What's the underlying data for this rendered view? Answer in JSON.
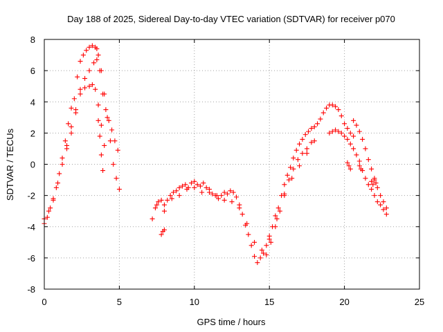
{
  "chart_data": {
    "type": "scatter",
    "title": "Day 188 of 2025, Sidereal Day-to-day VTEC variation (SDTVAR) for receiver p070",
    "xlabel": "GPS time / hours",
    "ylabel": "SDTVAR / TECUs",
    "xlim": [
      0,
      25
    ],
    "ylim": [
      -8,
      8
    ],
    "xticks": [
      0,
      5,
      10,
      15,
      20,
      25
    ],
    "yticks": [
      -8,
      -6,
      -4,
      -2,
      0,
      2,
      4,
      6,
      8
    ],
    "grid": true,
    "marker": "+",
    "color": "#ff0000",
    "series": [
      {
        "name": "track-a",
        "x": [
          0.0,
          0.2,
          0.4,
          0.6,
          0.8,
          1.0,
          1.2,
          1.4,
          1.6,
          1.8,
          2.0,
          2.2,
          2.4,
          2.6,
          2.8,
          3.0,
          3.2,
          3.4,
          3.5,
          3.6,
          3.8,
          4.0,
          4.2,
          4.4,
          4.6,
          4.8,
          5.0
        ],
        "y": [
          -3.8,
          -3.4,
          -2.8,
          -2.2,
          -1.5,
          -0.6,
          0.4,
          1.5,
          2.6,
          3.6,
          4.2,
          5.6,
          6.6,
          7.0,
          7.3,
          7.5,
          7.6,
          7.5,
          7.4,
          7.0,
          6.0,
          4.5,
          3.0,
          1.5,
          0.0,
          -0.9,
          -1.6
        ]
      },
      {
        "name": "track-b",
        "x": [
          0.0,
          0.3,
          0.6,
          0.9,
          1.2,
          1.5,
          1.8,
          2.1,
          2.4,
          2.7,
          3.0,
          3.3,
          3.5,
          3.7,
          3.9,
          4.1,
          4.3,
          4.5,
          4.7,
          4.9
        ],
        "y": [
          -3.5,
          -3.0,
          -2.3,
          -1.2,
          0.0,
          1.2,
          2.4,
          3.5,
          4.8,
          5.5,
          6.0,
          6.5,
          6.7,
          6.0,
          4.5,
          3.5,
          2.8,
          2.2,
          1.5,
          0.9
        ]
      },
      {
        "name": "track-c",
        "x": [
          1.5,
          1.8,
          2.1,
          2.4,
          2.7,
          3.0,
          3.2,
          3.4,
          3.6,
          3.8,
          4.0
        ],
        "y": [
          1.0,
          2.0,
          3.3,
          4.5,
          4.9,
          5.0,
          5.1,
          4.8,
          3.8,
          2.5,
          1.2
        ]
      },
      {
        "name": "track-d",
        "x": [
          3.6,
          3.7,
          3.8,
          3.9
        ],
        "y": [
          2.8,
          1.8,
          0.6,
          -0.4
        ]
      },
      {
        "name": "track-e",
        "x": [
          7.2,
          7.4,
          7.6,
          7.8,
          8.0,
          8.2,
          8.4,
          8.6,
          8.8,
          9.0,
          9.2,
          9.4,
          9.6,
          9.8,
          10.0,
          10.2,
          10.4,
          10.6,
          10.8,
          11.0,
          11.2,
          11.4,
          11.6,
          11.8,
          12.0,
          12.2,
          12.4,
          12.6,
          12.8,
          13.0,
          13.2,
          13.4,
          13.6,
          13.8,
          14.0,
          14.2,
          14.4,
          14.6,
          14.8,
          15.0,
          15.2,
          15.4,
          15.6,
          15.8,
          16.0,
          16.2,
          16.4,
          16.6,
          16.8,
          17.0,
          17.2,
          17.4,
          17.6,
          17.8,
          18.0,
          18.2,
          18.4,
          18.6,
          18.8,
          19.0,
          19.2,
          19.4,
          19.6,
          19.8,
          20.0,
          20.2,
          20.4,
          20.6
        ],
        "y": [
          -3.5,
          -2.8,
          -2.4,
          -2.3,
          -2.6,
          -2.3,
          -2.0,
          -1.8,
          -1.7,
          -1.5,
          -1.4,
          -1.3,
          -1.5,
          -1.2,
          -1.1,
          -1.3,
          -1.4,
          -1.2,
          -1.5,
          -1.8,
          -1.9,
          -2.0,
          -2.2,
          -2.0,
          -1.8,
          -1.9,
          -1.7,
          -1.8,
          -2.1,
          -2.6,
          -3.2,
          -3.9,
          -4.5,
          -5.2,
          -5.9,
          -6.3,
          -6.0,
          -5.7,
          -5.2,
          -4.6,
          -4.0,
          -3.3,
          -2.8,
          -2.0,
          -1.3,
          -0.7,
          -0.2,
          0.4,
          0.9,
          1.3,
          1.6,
          1.9,
          2.1,
          2.3,
          2.4,
          2.6,
          2.9,
          3.3,
          3.6,
          3.8,
          3.8,
          3.7,
          3.5,
          3.1,
          2.6,
          2.3,
          2.0,
          1.8
        ]
      },
      {
        "name": "track-f",
        "x": [
          7.5,
          8.0,
          8.5,
          9.0,
          9.5,
          10.0,
          10.5,
          11.0,
          11.5,
          12.0,
          12.5,
          13.0,
          13.5,
          14.0,
          14.5,
          15.0,
          15.5,
          16.0,
          16.5,
          17.0,
          17.5,
          18.0
        ],
        "y": [
          -2.6,
          -3.0,
          -2.2,
          -2.0,
          -1.6,
          -1.5,
          -1.8,
          -1.6,
          -2.0,
          -2.3,
          -2.4,
          -2.8,
          -3.8,
          -5.0,
          -5.5,
          -4.8,
          -3.5,
          -1.9,
          -0.9,
          -0.1,
          0.7,
          1.5
        ]
      },
      {
        "name": "track-g",
        "x": [
          7.8,
          7.9,
          8.0
        ],
        "y": [
          -4.5,
          -4.3,
          -4.2
        ]
      },
      {
        "name": "track-h",
        "x": [
          14.8,
          15.1,
          15.4,
          15.7,
          16.0,
          16.3,
          16.6,
          16.9,
          17.2,
          17.5,
          17.8
        ],
        "y": [
          -5.8,
          -5.0,
          -4.0,
          -3.0,
          -2.0,
          -1.0,
          -0.3,
          0.3,
          0.7,
          1.0,
          1.4
        ]
      },
      {
        "name": "track-i",
        "x": [
          19.0,
          19.2,
          19.4,
          19.6,
          19.8,
          20.0,
          20.2,
          20.4,
          20.6,
          20.8,
          21.0,
          21.2,
          21.4,
          21.6,
          21.8,
          22.0,
          22.2,
          22.4,
          22.6,
          22.8
        ],
        "y": [
          2.0,
          2.1,
          2.2,
          2.1,
          2.0,
          1.8,
          1.6,
          1.3,
          1.0,
          0.6,
          0.2,
          -0.4,
          -0.9,
          -1.3,
          -1.6,
          -2.0,
          -2.4,
          -2.6,
          -2.9,
          -3.2
        ]
      },
      {
        "name": "track-j",
        "x": [
          20.6,
          20.8,
          21.0,
          21.2,
          21.4,
          21.6,
          21.8,
          22.0,
          22.2,
          22.4,
          22.6,
          22.8
        ],
        "y": [
          2.8,
          2.5,
          2.1,
          1.6,
          1.0,
          0.3,
          -0.3,
          -0.9,
          -1.5,
          -2.0,
          -2.4,
          -2.8
        ]
      },
      {
        "name": "track-k",
        "x": [
          20.2,
          20.3,
          20.4
        ],
        "y": [
          0.1,
          -0.1,
          -0.3
        ]
      },
      {
        "name": "track-l",
        "x": [
          21.0,
          21.1
        ],
        "y": [
          -0.1,
          -0.3
        ]
      },
      {
        "name": "track-m",
        "x": [
          21.8,
          21.9,
          22.0,
          22.1
        ],
        "y": [
          -1.1,
          -1.3,
          -1.0,
          -1.2
        ]
      }
    ]
  }
}
